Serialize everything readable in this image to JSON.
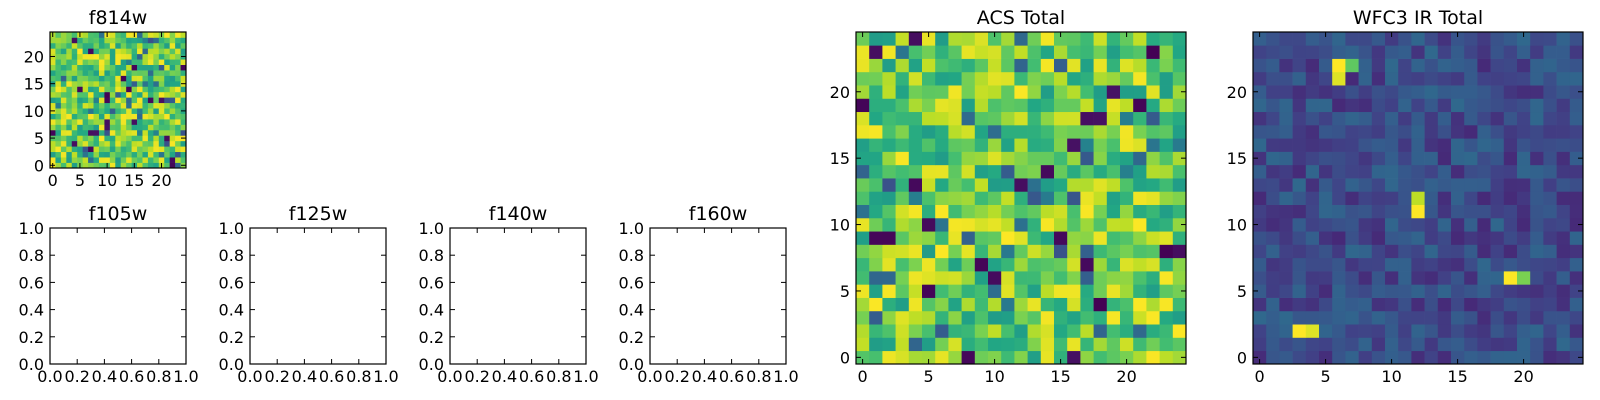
{
  "chart_data": [
    {
      "id": "f814w",
      "type": "heatmap",
      "title": "f814w",
      "grid_size": 25,
      "x_ticks": [
        "0",
        "5",
        "10",
        "15",
        "20"
      ],
      "y_ticks": [
        "0",
        "5",
        "10",
        "15",
        "20"
      ],
      "colormap": "viridis",
      "value_range": [
        0,
        1
      ],
      "hotspots": []
    },
    {
      "id": "f105w",
      "type": "empty",
      "title": "f105w",
      "x_ticks": [
        "0.0",
        "0.2",
        "0.4",
        "0.6",
        "0.8",
        "1.0"
      ],
      "y_ticks": [
        "0.0",
        "0.2",
        "0.4",
        "0.6",
        "0.8",
        "1.0"
      ]
    },
    {
      "id": "f125w",
      "type": "empty",
      "title": "f125w",
      "x_ticks": [
        "0.0",
        "0.2",
        "0.4",
        "0.6",
        "0.8",
        "1.0"
      ],
      "y_ticks": [
        "0.0",
        "0.2",
        "0.4",
        "0.6",
        "0.8",
        "1.0"
      ]
    },
    {
      "id": "f140w",
      "type": "empty",
      "title": "f140w",
      "x_ticks": [
        "0.0",
        "0.2",
        "0.4",
        "0.6",
        "0.8",
        "1.0"
      ],
      "y_ticks": [
        "0.0",
        "0.2",
        "0.4",
        "0.6",
        "0.8",
        "1.0"
      ]
    },
    {
      "id": "f160w",
      "type": "empty",
      "title": "f160w",
      "x_ticks": [
        "0.0",
        "0.2",
        "0.4",
        "0.6",
        "0.8",
        "1.0"
      ],
      "y_ticks": [
        "0.0",
        "0.2",
        "0.4",
        "0.6",
        "0.8",
        "1.0"
      ]
    },
    {
      "id": "acs-total",
      "type": "heatmap",
      "title": "ACS Total",
      "grid_size": 25,
      "x_ticks": [
        "0",
        "5",
        "10",
        "15",
        "20"
      ],
      "y_ticks": [
        "0",
        "5",
        "10",
        "15",
        "20"
      ],
      "colormap": "viridis",
      "value_range": [
        0,
        1
      ],
      "hotspots": []
    },
    {
      "id": "wfc3-ir-total",
      "type": "heatmap",
      "title": "WFC3 IR Total",
      "grid_size": 25,
      "x_ticks": [
        "0",
        "5",
        "10",
        "15",
        "20"
      ],
      "y_ticks": [
        "0",
        "5",
        "10",
        "15",
        "20"
      ],
      "colormap": "viridis",
      "value_range": [
        0,
        1
      ],
      "hotspots": [
        {
          "x": 6,
          "y": 22,
          "value": 1.0
        },
        {
          "x": 7,
          "y": 22,
          "value": 0.75
        },
        {
          "x": 6,
          "y": 21,
          "value": 0.95
        },
        {
          "x": 12,
          "y": 12,
          "value": 0.9
        },
        {
          "x": 12,
          "y": 11,
          "value": 1.0
        },
        {
          "x": 19,
          "y": 6,
          "value": 1.0
        },
        {
          "x": 20,
          "y": 6,
          "value": 0.8
        },
        {
          "x": 3,
          "y": 2,
          "value": 1.0
        },
        {
          "x": 4,
          "y": 2,
          "value": 0.95
        }
      ]
    }
  ]
}
